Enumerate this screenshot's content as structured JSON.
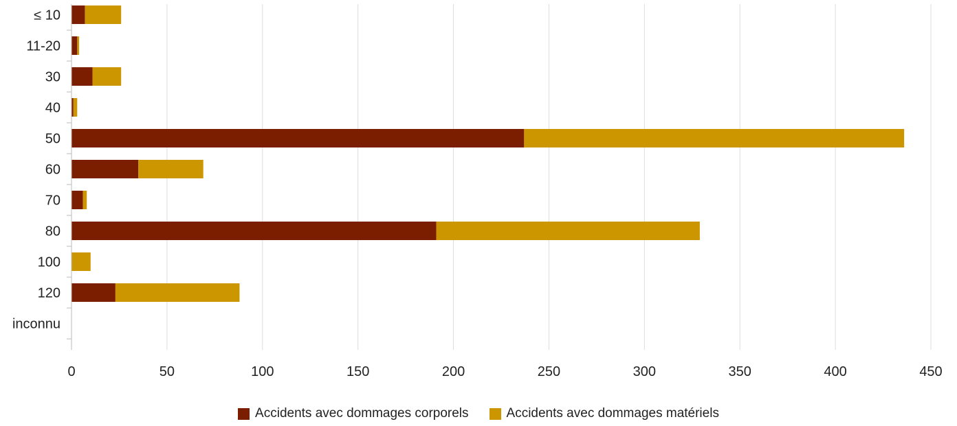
{
  "chart_data": {
    "type": "bar",
    "orientation": "horizontal",
    "stacked": true,
    "categories": [
      "≤ 10",
      "11-20",
      "30",
      "40",
      "50",
      "60",
      "70",
      "80",
      "100",
      "120",
      "inconnu"
    ],
    "series": [
      {
        "name": "Accidents avec dommages corporels",
        "color": "#7b1e00",
        "values": [
          7,
          3,
          11,
          1,
          237,
          35,
          6,
          191,
          0,
          23,
          0
        ]
      },
      {
        "name": "Accidents avec dommages matériels",
        "color": "#cc9600",
        "values": [
          19,
          1,
          15,
          2,
          199,
          34,
          2,
          138,
          10,
          65,
          0
        ]
      }
    ],
    "xlim": [
      0,
      450
    ],
    "xticks": [
      0,
      50,
      100,
      150,
      200,
      250,
      300,
      350,
      400,
      450
    ],
    "grid": "vertical",
    "legend_position": "bottom-center",
    "title": "",
    "xlabel": "",
    "ylabel": ""
  }
}
